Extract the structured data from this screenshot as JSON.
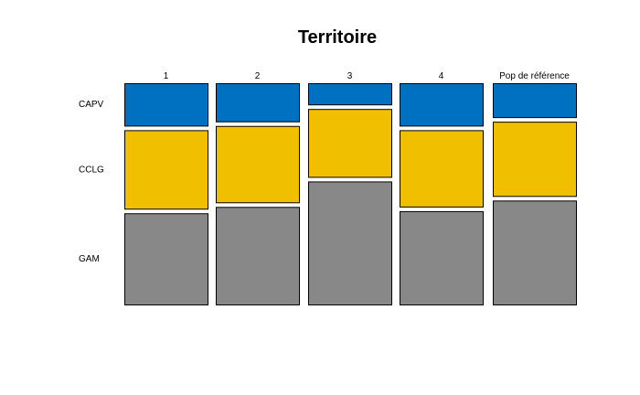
{
  "chart_data": {
    "type": "mosaic",
    "title": "Territoire",
    "columns": [
      "1",
      "2",
      "3",
      "4",
      "Pop de référence"
    ],
    "rows": [
      "CAPV",
      "CCLG",
      "GAM"
    ],
    "colors": {
      "CAPV": "#0070c0",
      "CCLG": "#f0c000",
      "GAM": "#888888"
    },
    "proportions": [
      {
        "column": "1",
        "CAPV": 0.2,
        "CCLG": 0.37,
        "GAM": 0.43
      },
      {
        "column": "2",
        "CAPV": 0.18,
        "CCLG": 0.36,
        "GAM": 0.46
      },
      {
        "column": "3",
        "CAPV": 0.1,
        "CCLG": 0.32,
        "GAM": 0.58
      },
      {
        "column": "4",
        "CAPV": 0.2,
        "CCLG": 0.36,
        "GAM": 0.44
      },
      {
        "column": "Pop de référence",
        "CAPV": 0.16,
        "CCLG": 0.35,
        "GAM": 0.49
      }
    ],
    "legend": "none",
    "grid": false
  }
}
